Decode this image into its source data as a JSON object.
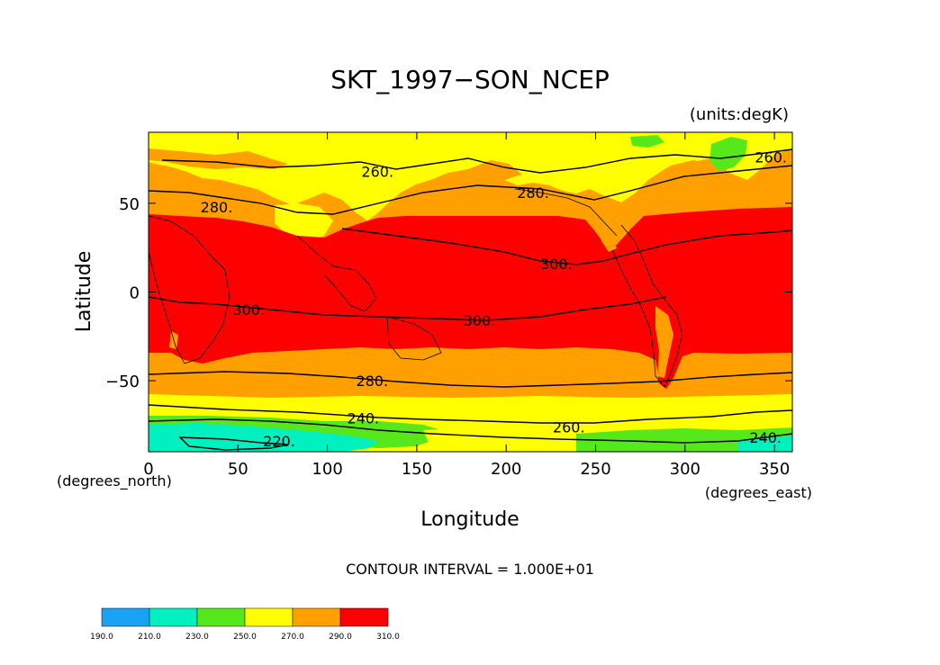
{
  "plot": {
    "title": "SKT_1997−SON_NCEP",
    "units_note": "(units:degK)",
    "xlabel": "Longitude",
    "ylabel": "Latitude",
    "x_unit_note": "(degrees_east)",
    "y_unit_note": "(degrees_north)",
    "contour_interval_text": "CONTOUR INTERVAL = 1.000E+01"
  },
  "chart_data": {
    "type": "heatmap",
    "title": "SKT_1997−SON_NCEP",
    "xlabel": "Longitude",
    "ylabel": "Latitude",
    "xlim": [
      0,
      360
    ],
    "ylim": [
      -90,
      90
    ],
    "x_ticks": [
      0,
      50,
      100,
      150,
      200,
      250,
      300,
      350
    ],
    "y_ticks": [
      -50,
      0,
      50
    ],
    "x_tick_labels": [
      "0",
      "50",
      "100",
      "150",
      "200",
      "250",
      "300",
      "350"
    ],
    "y_tick_labels": [
      "−50",
      "0",
      "50"
    ],
    "contour_labels": [
      {
        "text": "260.",
        "lon": 128,
        "lat": 68
      },
      {
        "text": "260.",
        "lon": 348,
        "lat": 76
      },
      {
        "text": "280.",
        "lon": 38,
        "lat": 48
      },
      {
        "text": "280.",
        "lon": 215,
        "lat": 56
      },
      {
        "text": "300.",
        "lon": 228,
        "lat": 16
      },
      {
        "text": "300.",
        "lon": 56,
        "lat": -10
      },
      {
        "text": "300.",
        "lon": 185,
        "lat": -16
      },
      {
        "text": "280.",
        "lon": 125,
        "lat": -50
      },
      {
        "text": "240.",
        "lon": 120,
        "lat": -71
      },
      {
        "text": "260.",
        "lon": 235,
        "lat": -76
      },
      {
        "text": "220.",
        "lon": 73,
        "lat": -84
      },
      {
        "text": "240.",
        "lon": 345,
        "lat": -82
      }
    ],
    "colorbar": {
      "levels": [
        190,
        210,
        230,
        250,
        270,
        290,
        310
      ],
      "level_labels": [
        "190.0",
        "210.0",
        "230.0",
        "250.0",
        "270.0",
        "290.0",
        "310.0"
      ],
      "colors": [
        "#1aa3f5",
        "#00f0bf",
        "#56e81a",
        "#ffff00",
        "#ffa000",
        "#ff0000"
      ]
    }
  },
  "colors": {
    "band_red": "#ff0000",
    "band_orange": "#ffa000",
    "band_yellow": "#ffff00",
    "band_green": "#56e81a",
    "band_teal": "#00f0bf",
    "band_blue": "#1aa3f5"
  }
}
